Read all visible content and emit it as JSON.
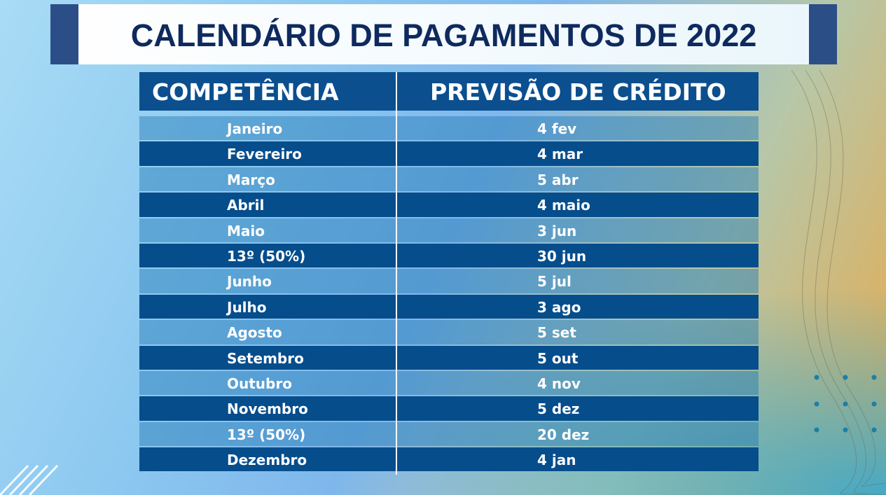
{
  "header": {
    "title": "CALENDÁRIO DE PAGAMENTOS DE 2022"
  },
  "table": {
    "columns": [
      "COMPETÊNCIA",
      "PREVISÃO DE CRÉDITO"
    ],
    "rows": [
      [
        "Janeiro",
        "4 fev"
      ],
      [
        "Fevereiro",
        "4 mar"
      ],
      [
        "Março",
        "5 abr"
      ],
      [
        "Abril",
        "4 maio"
      ],
      [
        "Maio",
        "3 jun"
      ],
      [
        "13º (50%)",
        "30 jun"
      ],
      [
        "Junho",
        "5 jul"
      ],
      [
        "Julho",
        "3 ago"
      ],
      [
        "Agosto",
        "5 set"
      ],
      [
        "Setembro",
        "5 out"
      ],
      [
        "Outubro",
        "4 nov"
      ],
      [
        "Novembro",
        "5 dez"
      ],
      [
        "13º (50%)",
        "20 dez"
      ],
      [
        "Dezembro",
        "4 jan"
      ]
    ]
  }
}
